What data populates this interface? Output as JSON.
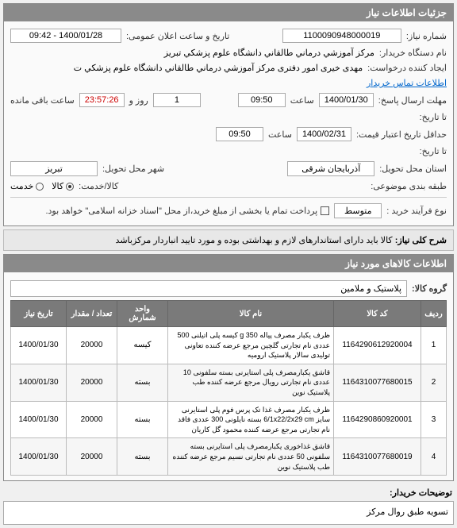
{
  "panel1": {
    "title": "جزئیات اطلاعات نیاز",
    "need_number_label": "شماره نیاز:",
    "need_number": "1100090948000019",
    "announce_label": "تاریخ و ساعت اعلان عمومی:",
    "announce_value": "1400/01/28 - 09:42",
    "buyer_label": "نام دستگاه خریدار:",
    "buyer_value": "مرکز آموزشي درماني طالقاني دانشگاه علوم پزشکي تبریز",
    "creator_label": "ایجاد کننده درخواست:",
    "creator_value": "مهدی خیری امور دفتری مرکز آموزشي درماني طالقاني دانشگاه علوم پزشکي ت",
    "contact_link": "اطلاعات تماس خریدار",
    "deadline_label": "مهلت ارسال پاسخ:",
    "deadline_date": "1400/01/30",
    "time_label": "ساعت",
    "deadline_time": "09:50",
    "countdown": "23:57:26",
    "day_label": "روز و",
    "days": "1",
    "remaining_label": "ساعت باقی مانده",
    "to_date_label": "تا تاریخ:",
    "validity_label": "حداقل تاریخ اعتبار قیمت:",
    "validity_date": "1400/02/31",
    "validity_time": "09:50",
    "to_date_label2": "تا تاریخ:",
    "province_label": "استان محل تحویل:",
    "province": "آذربایجان شرقی",
    "city_label": "شهر محل تحویل:",
    "city": "تبریز",
    "budget_label": "طبقه بندی موضوعی:",
    "goods_label": "کالا/خدمت:",
    "goods_option": "کالا",
    "service_option": "خدمت",
    "purchase_type_label": "نوع فرآیند خرید :",
    "purchase_type": "متوسط",
    "partial_label": "پرداخت تمام یا بخشی از مبلغ خرید،از محل \"اسناد خزانه اسلامی\" خواهد بود."
  },
  "note": {
    "label": "شرح کلی نیاز:",
    "text": "کالا باید دارای استاندارهای لازم و بهداشتی بوده و مورد تایید انباردار مرکزباشد"
  },
  "panel2": {
    "title": "اطلاعات کالاهای مورد نیاز",
    "group_label": "گروه کالا:",
    "group_value": "پلاستیک و ملامین",
    "columns": [
      "ردیف",
      "کد کالا",
      "نام کالا",
      "واحد شمارش",
      "تعداد / مقدار",
      "تاریخ نیاز"
    ],
    "rows": [
      {
        "n": "1",
        "code": "1164290612920004",
        "name": "ظرف یکبار مصرف پیاله 350 g کیسه پلی اتیلنی 500 عددی نام تجارتی گلچین مرجع عرضه کننده تعاونی تولیدی سالار پلاستیک ارومیه",
        "unit": "کیسه",
        "qty": "20000",
        "date": "1400/01/30"
      },
      {
        "n": "2",
        "code": "1164310077680015",
        "name": "قاشق یکبارمصرف پلی استایرنی بسته سلفونی 10 عددی نام تجارتی رویال مرجع عرضه کننده طب پلاستیک نوین",
        "unit": "بسته",
        "qty": "20000",
        "date": "1400/01/30"
      },
      {
        "n": "3",
        "code": "1164290860920001",
        "name": "ظرف یکبار مصرف غذا تک پرس فوم پلی استایرنی سایز 6/1x22/2x29 cm بسته نایلونی 300 عددی فاقد نام تجارتی مرجع عرضه کننده محمود گل کاریان",
        "unit": "بسته",
        "qty": "20000",
        "date": "1400/01/30"
      },
      {
        "n": "4",
        "code": "1164310077680019",
        "name": "قاشق غذاخوری یکبارمصرف پلی استایرنی بسته سلفونی 50 عددی نام تجارتی نسیم مرجع عرضه کننده طب پلاستیک نوین",
        "unit": "بسته",
        "qty": "20000",
        "date": "1400/01/30"
      }
    ]
  },
  "desc": {
    "label": "توضیحات خریدار:",
    "text": "تسویه طبق روال مرکز"
  }
}
